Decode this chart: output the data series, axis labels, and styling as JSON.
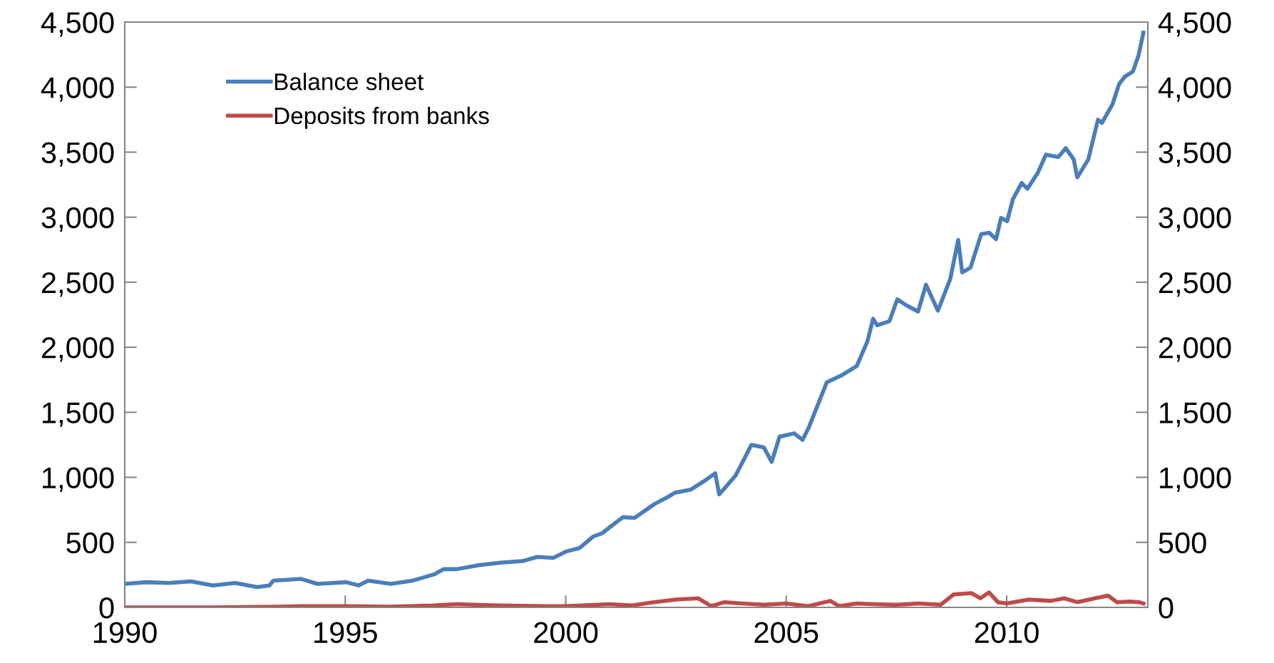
{
  "chart_data": {
    "type": "line",
    "series": [
      {
        "name": "Balance sheet",
        "color": "#4a7ebb",
        "x": [
          1990.0,
          1990.5,
          1991.0,
          1991.5,
          1992.0,
          1992.5,
          1993.0,
          1993.28,
          1993.37,
          1994.0,
          1994.37,
          1995.02,
          1995.3,
          1995.52,
          1996.03,
          1996.53,
          1997.03,
          1997.23,
          1997.53,
          1998.03,
          1998.52,
          1999.02,
          1999.35,
          1999.72,
          2000.02,
          2000.31,
          2000.62,
          2000.82,
          2001.01,
          2001.3,
          2001.56,
          2002.01,
          2002.29,
          2002.47,
          2002.84,
          2003.13,
          2003.39,
          2003.48,
          2003.85,
          2004.03,
          2004.21,
          2004.49,
          2004.67,
          2004.85,
          2005.18,
          2005.37,
          2005.51,
          2005.92,
          2006.24,
          2006.6,
          2006.84,
          2006.97,
          2007.06,
          2007.34,
          2007.52,
          2007.71,
          2007.99,
          2008.17,
          2008.44,
          2008.72,
          2008.9,
          2008.99,
          2009.18,
          2009.42,
          2009.6,
          2009.76,
          2009.87,
          2010.01,
          2010.14,
          2010.34,
          2010.47,
          2010.71,
          2010.89,
          2011.17,
          2011.34,
          2011.52,
          2011.6,
          2011.85,
          2012.07,
          2012.16,
          2012.4,
          2012.55,
          2012.68,
          2012.86,
          2012.99,
          2013.1
        ],
        "values": [
          181,
          194,
          188,
          200,
          169,
          188,
          156,
          169,
          206,
          219,
          181,
          194,
          169,
          206,
          181,
          206,
          256,
          294,
          294,
          325,
          344,
          356,
          388,
          381,
          431,
          456,
          544,
          569,
          619,
          694,
          688,
          794,
          844,
          881,
          906,
          969,
          1031,
          869,
          1013,
          1131,
          1250,
          1231,
          1119,
          1313,
          1338,
          1288,
          1381,
          1731,
          1781,
          1856,
          2044,
          2219,
          2169,
          2200,
          2369,
          2325,
          2275,
          2481,
          2281,
          2525,
          2825,
          2575,
          2613,
          2869,
          2881,
          2831,
          2994,
          2969,
          3138,
          3263,
          3219,
          3344,
          3481,
          3463,
          3531,
          3444,
          3306,
          3444,
          3750,
          3725,
          3869,
          4025,
          4081,
          4119,
          4244,
          4419
        ]
      },
      {
        "name": "Deposits from banks",
        "color": "#be4b48",
        "x": [
          1990.0,
          1992.0,
          1993.5,
          1994.0,
          1995.0,
          1996.0,
          1997.0,
          1997.5,
          1998.5,
          1999.5,
          2000.0,
          2001.0,
          2001.5,
          2002.0,
          2002.5,
          2003.0,
          2003.3,
          2003.6,
          2004.0,
          2004.5,
          2005.0,
          2005.5,
          2006.0,
          2006.2,
          2006.6,
          2007.0,
          2007.5,
          2008.0,
          2008.5,
          2008.8,
          2009.2,
          2009.4,
          2009.6,
          2009.8,
          2010.0,
          2010.5,
          2011.0,
          2011.3,
          2011.6,
          2012.0,
          2012.3,
          2012.5,
          2012.8,
          2013.0,
          2013.1
        ],
        "values": [
          0,
          0,
          5,
          10,
          10,
          5,
          15,
          25,
          15,
          10,
          10,
          25,
          15,
          40,
          60,
          70,
          10,
          40,
          30,
          20,
          30,
          10,
          50,
          10,
          30,
          25,
          20,
          30,
          20,
          100,
          110,
          70,
          115,
          40,
          30,
          60,
          50,
          70,
          40,
          70,
          90,
          40,
          45,
          40,
          30
        ]
      }
    ],
    "xlim": [
      1990,
      2013.2
    ],
    "xticks": [
      1990,
      1995,
      2000,
      2005,
      2010
    ],
    "ylim": [
      0,
      4500
    ],
    "yticks": [
      0,
      500,
      {
        "value": 1000,
        "label": "1,000"
      },
      {
        "value": 1500,
        "label": "1,500"
      },
      {
        "value": 2000,
        "label": "2,000"
      },
      {
        "value": 2500,
        "label": "2,500"
      },
      {
        "value": 3000,
        "label": "3,000"
      },
      {
        "value": 3500,
        "label": "3,500"
      },
      {
        "value": 4000,
        "label": "4,000"
      },
      {
        "value": 4500,
        "label": "4,500"
      }
    ],
    "y2lim": [
      0,
      4500
    ],
    "y2ticks": [
      0,
      500,
      {
        "value": 1000,
        "label": "1,000"
      },
      {
        "value": 1500,
        "label": "1,500"
      },
      {
        "value": 2000,
        "label": "2,000"
      },
      {
        "value": 2500,
        "label": "2,500"
      },
      {
        "value": 3000,
        "label": "3,000"
      },
      {
        "value": 3500,
        "label": "3,500"
      },
      {
        "value": 4000,
        "label": "4,000"
      },
      {
        "value": 4500,
        "label": "4,500"
      }
    ],
    "legend": "top left",
    "grid": false,
    "marker": "none",
    "line_style": "solid"
  }
}
